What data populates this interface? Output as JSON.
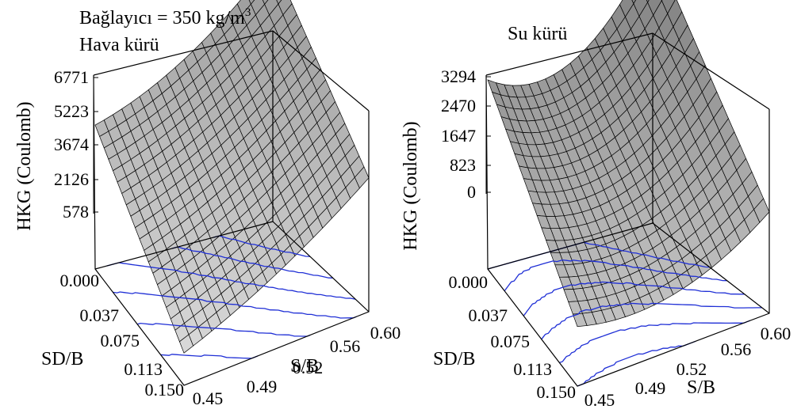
{
  "chart_data": [
    {
      "type": "surface",
      "title_line1": "Bağlayıcı = 350 kg/m",
      "title_sup": "3",
      "title_line2": "Hava kürü",
      "zlabel": "HKG (Coulomb)",
      "xlabel": "S/B",
      "ylabel": "SD/B",
      "z_ticks": [
        "6771",
        "5223",
        "3674",
        "2126",
        "578"
      ],
      "y_ticks": [
        "0.000",
        "0.037",
        "0.075",
        "0.113",
        "0.150"
      ],
      "x_ticks": [
        "0.45",
        "0.49",
        "0.52",
        "0.56",
        "0.60"
      ],
      "zlim": [
        578,
        6771
      ],
      "xlim": [
        0.45,
        0.6
      ],
      "ylim": [
        0.0,
        0.15
      ],
      "corner_values": {
        "xmin_ymin": 3900,
        "xmax_ymin": 6771,
        "xmin_ymax": 600,
        "xmax_ymax": 3300
      },
      "curvature": 500,
      "surface_color": "#d8d8d8",
      "contour_color": "#1f2fd6"
    },
    {
      "type": "surface",
      "title_line1": "Su kürü",
      "zlabel": "HKG (Coulomb)",
      "xlabel": "S/B",
      "ylabel": "SD/B",
      "z_ticks": [
        "3294",
        "2470",
        "1647",
        "823",
        "0"
      ],
      "y_ticks": [
        "0.000",
        "0.037",
        "0.075",
        "0.113",
        "0.150"
      ],
      "x_ticks": [
        "0.45",
        "0.49",
        "0.52",
        "0.56",
        "0.60"
      ],
      "zlim": [
        0,
        3294
      ],
      "xlim": [
        0.45,
        0.6
      ],
      "ylim": [
        0.0,
        0.15
      ],
      "corner_values": {
        "xmin_ymin": 2800,
        "xmax_ymin": 3294,
        "xmin_ymax": 500,
        "xmax_ymax": 700
      },
      "curvature": 900,
      "surface_color": "#c8c8c8",
      "contour_color": "#1f2fd6"
    }
  ]
}
